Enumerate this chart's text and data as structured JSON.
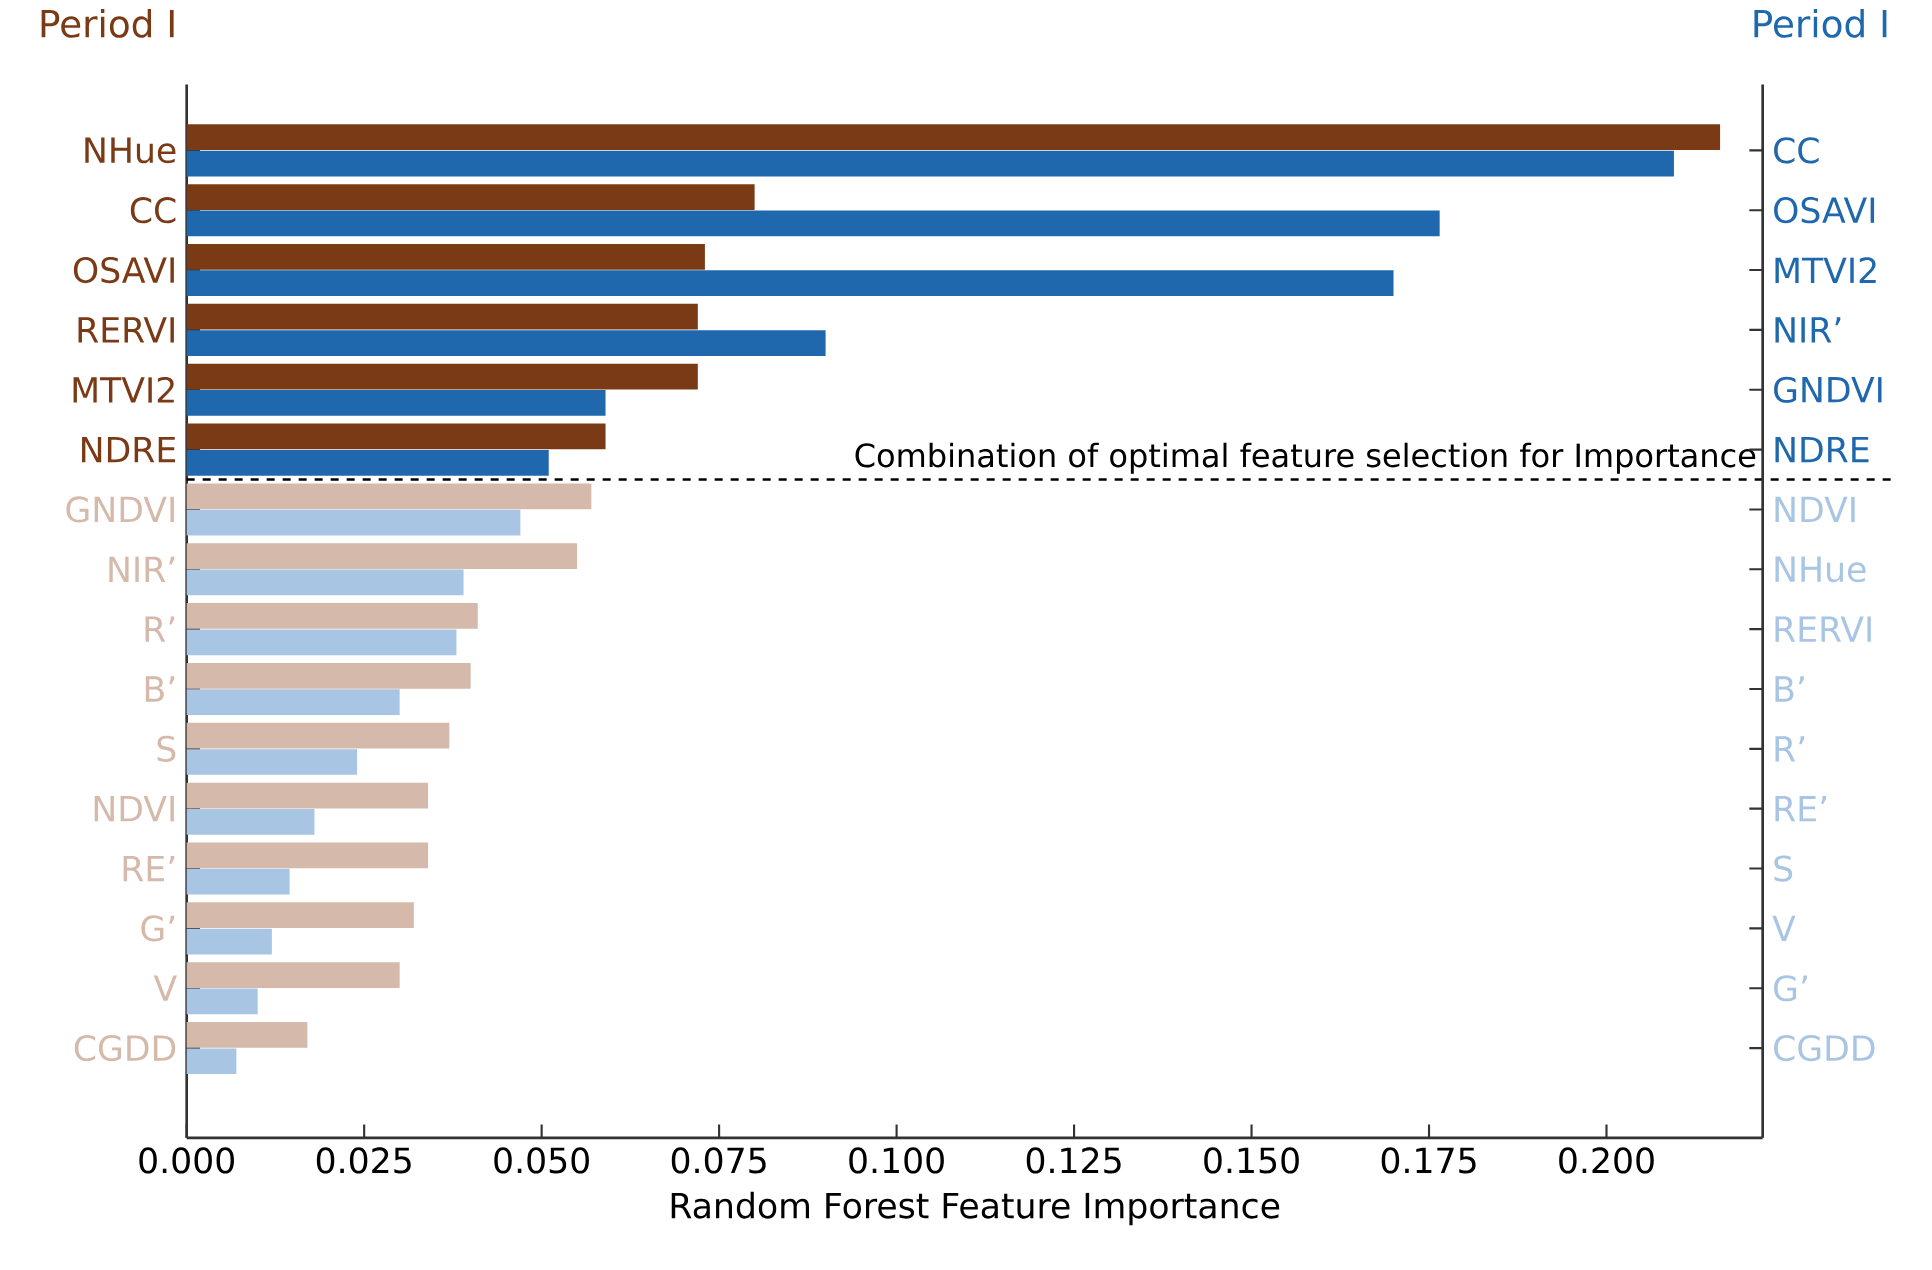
{
  "chart_data": [
    {
      "type": "bar",
      "orientation": "horizontal",
      "title": "Period I",
      "xlabel": "Random Forest Feature Importance",
      "categories": [
        "NHue",
        "CC",
        "OSAVI",
        "RERVI",
        "MTVI2",
        "NDRE",
        "GNDVI",
        "NIR’",
        "R’",
        "B’",
        "S",
        "NDVI",
        "RE’",
        "G’",
        "V",
        "CGDD"
      ],
      "values": [
        0.216,
        0.08,
        0.073,
        0.072,
        0.072,
        0.059,
        0.057,
        0.055,
        0.041,
        0.04,
        0.037,
        0.034,
        0.034,
        0.032,
        0.03,
        0.017
      ],
      "colors": [
        "#7b3a16",
        "#7b3a16",
        "#7b3a16",
        "#7b3a16",
        "#7b3a16",
        "#7b3a16",
        "#d5b9aa",
        "#d5b9aa",
        "#d5b9aa",
        "#d5b9aa",
        "#d5b9aa",
        "#d5b9aa",
        "#d5b9aa",
        "#d5b9aa",
        "#d5b9aa",
        "#d5b9aa"
      ],
      "xlim": [
        0,
        0.222
      ],
      "xticks": [
        {
          "value": 0,
          "label": "0.000"
        },
        {
          "value": 0.025,
          "label": "0.025"
        },
        {
          "value": 0.05,
          "label": "0.050"
        },
        {
          "value": 0.075,
          "label": "0.075"
        },
        {
          "value": 0.1,
          "label": "0.100"
        },
        {
          "value": 0.125,
          "label": "0.125"
        },
        {
          "value": 0.15,
          "label": "0.150"
        },
        {
          "value": 0.175,
          "label": "0.175"
        },
        {
          "value": 0.2,
          "label": "0.200"
        }
      ],
      "annotations": [
        "Combination of optimal feature selection for Importance"
      ]
    },
    {
      "type": "bar",
      "orientation": "horizontal",
      "title": "Period I",
      "tick_labels": "y",
      "categories": [
        "CC",
        "OSAVI",
        "MTVI2",
        "NIR’",
        "GNDVI",
        "NDRE",
        "NDVI",
        "NHue",
        "RERVI",
        "B’",
        "R’",
        "RE’",
        "S",
        "V",
        "G’",
        "CGDD"
      ],
      "values": [
        0.2095,
        0.1765,
        0.17,
        0.09,
        0.059,
        0.051,
        0.047,
        0.039,
        0.038,
        0.03,
        0.024,
        0.018,
        0.0145,
        0.012,
        0.01,
        0.007
      ],
      "colors": [
        "#1f68ae",
        "#1f68ae",
        "#1f68ae",
        "#1f68ae",
        "#1f68ae",
        "#1f68ae",
        "#a8c5e4",
        "#a8c5e4",
        "#a8c5e4",
        "#a8c5e4",
        "#a8c5e4",
        "#a8c5e4",
        "#a8c5e4",
        "#a8c5e4",
        "#a8c5e4",
        "#a8c5e4"
      ],
      "xlim": [
        0,
        0.222
      ]
    }
  ]
}
